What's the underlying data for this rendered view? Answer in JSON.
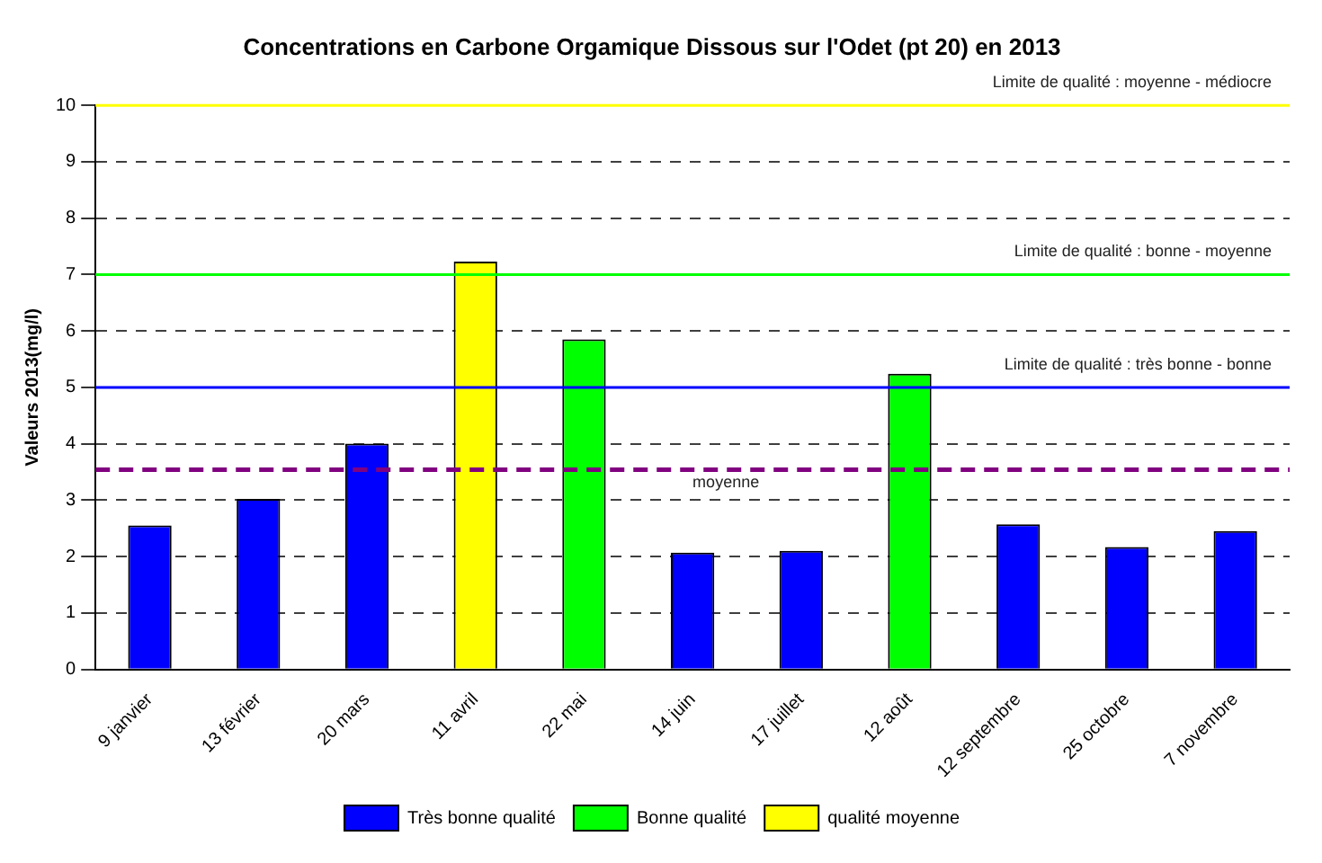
{
  "chart_data": {
    "type": "bar",
    "title": "Concentrations en Carbone Orgamique Dissous sur l'Odet (pt 20) en 2013",
    "ylabel": "Valeurs 2013(mg/l)",
    "categories": [
      "9 janvier",
      "13 février",
      "20 mars",
      "11 avril",
      "22 mai",
      "14 juin",
      "17 juillet",
      "12 août",
      "12 septembre",
      "25 octobre",
      "7 novembre"
    ],
    "stacked": true,
    "series": [
      {
        "name": "Très bonne qualité",
        "color": "#0000ff",
        "values": [
          2.55,
          3.02,
          4.0,
          null,
          null,
          2.07,
          2.1,
          null,
          2.57,
          2.17,
          2.45
        ]
      },
      {
        "name": "Bonne qualité",
        "color": "#00ff00",
        "values": [
          null,
          null,
          null,
          null,
          5.85,
          null,
          null,
          5.24,
          null,
          null,
          null
        ]
      },
      {
        "name": "qualité moyenne",
        "color": "#ffff00",
        "values": [
          null,
          null,
          null,
          7.23,
          null,
          null,
          null,
          null,
          null,
          null,
          null
        ]
      }
    ],
    "ylim": [
      0,
      10
    ],
    "yticks": [
      0,
      1,
      2,
      3,
      4,
      5,
      6,
      7,
      8,
      9,
      10
    ],
    "grid": "y",
    "legend": "bottom",
    "ref_lines": [
      {
        "axis": "y",
        "value": 10,
        "label": "Limite de qualité : moyenne - médiocre",
        "color": "#ffff00"
      },
      {
        "axis": "y",
        "value": 7,
        "label": "Limite de qualité : bonne - moyenne",
        "color": "#00ff00"
      },
      {
        "axis": "y",
        "value": 5,
        "label": "Limite de qualité : très bonne - bonne",
        "color": "#0000ff"
      },
      {
        "axis": "y",
        "value": 3.54,
        "label": "moyenne",
        "color": "#800080",
        "line_style": "dashed"
      }
    ]
  }
}
